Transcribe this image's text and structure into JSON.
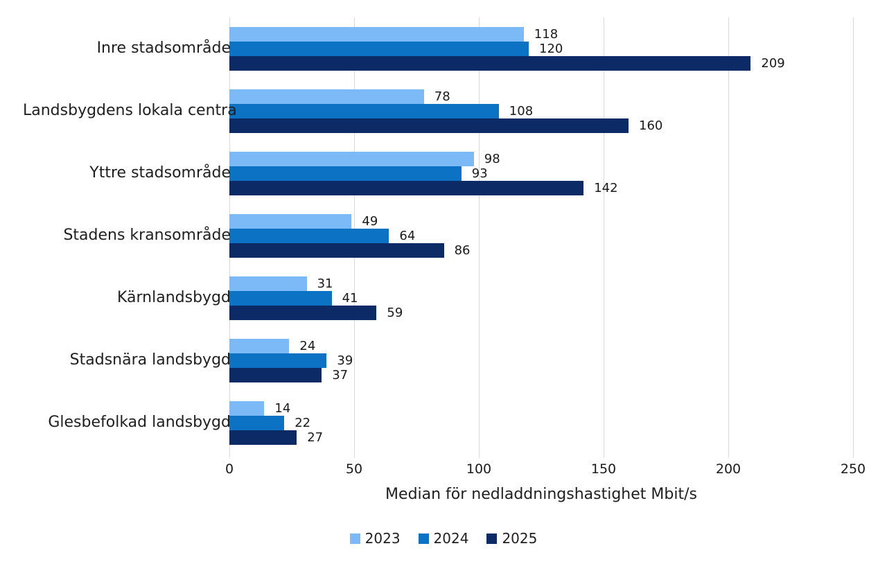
{
  "chart_data": {
    "type": "bar",
    "orientation": "horizontal",
    "title": "",
    "xlabel": "Median för nedladdningshastighet Mbit/s",
    "ylabel": "",
    "xlim": [
      0,
      250
    ],
    "x_ticks": [
      0,
      50,
      100,
      150,
      200,
      250
    ],
    "grid": "vertical-only",
    "gridline_color": "#d9d9d9",
    "legend_position": "bottom",
    "categories": [
      "Inre stadsområde",
      "Landsbygdens lokala centra",
      "Yttre stadsområde",
      "Stadens kransområde",
      "Kärnlandsbygd",
      "Stadsnära landsbygd",
      "Glesbefolkad landsbygd"
    ],
    "series": [
      {
        "name": "2023",
        "color": "#7cb9f7",
        "values": [
          118,
          78,
          98,
          49,
          31,
          24,
          14
        ]
      },
      {
        "name": "2024",
        "color": "#0b72c4",
        "values": [
          120,
          108,
          93,
          64,
          41,
          39,
          22
        ]
      },
      {
        "name": "2025",
        "color": "#0c2a66",
        "values": [
          209,
          160,
          142,
          86,
          59,
          37,
          27
        ]
      }
    ],
    "data_labels_shown": true,
    "text_color": "#1f1f1f"
  }
}
